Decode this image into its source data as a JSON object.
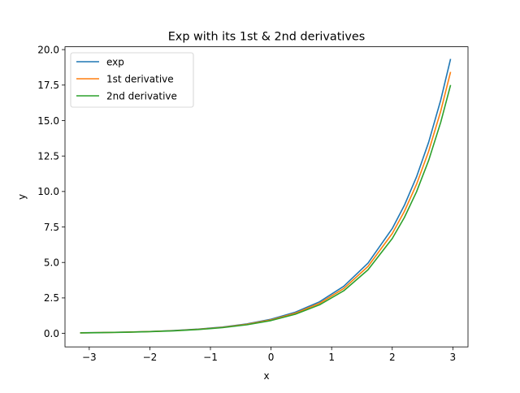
{
  "chart_data": {
    "type": "line",
    "title": "Exp with its 1st & 2nd derivatives",
    "xlabel": "x",
    "ylabel": "y",
    "xlim": [
      -3.4,
      3.25
    ],
    "ylim": [
      -0.95,
      20.2
    ],
    "xticks": [
      -3,
      -2,
      -1,
      0,
      1,
      2,
      3
    ],
    "xtick_labels": [
      "−3",
      "−2",
      "−1",
      "0",
      "1",
      "2",
      "3"
    ],
    "yticks": [
      0.0,
      2.5,
      5.0,
      7.5,
      10.0,
      12.5,
      15.0,
      17.5,
      20.0
    ],
    "ytick_labels": [
      "0.0",
      "2.5",
      "5.0",
      "7.5",
      "10.0",
      "12.5",
      "15.0",
      "17.5",
      "20.0"
    ],
    "grid": false,
    "legend_position": "top-left",
    "x": [
      -3.14,
      -2.8,
      -2.4,
      -2.0,
      -1.6,
      -1.2,
      -0.8,
      -0.4,
      0.0,
      0.4,
      0.8,
      1.2,
      1.6,
      2.0,
      2.2,
      2.4,
      2.6,
      2.8,
      2.96
    ],
    "series": [
      {
        "name": "exp",
        "color": "#1f77b4",
        "values": [
          0.043,
          0.061,
          0.091,
          0.135,
          0.202,
          0.301,
          0.449,
          0.67,
          1.0,
          1.492,
          2.226,
          3.32,
          4.953,
          7.389,
          9.025,
          11.023,
          13.464,
          16.445,
          19.298
        ]
      },
      {
        "name": "1st derivative",
        "color": "#ff7f0e",
        "values": [
          0.041,
          0.058,
          0.087,
          0.128,
          0.192,
          0.287,
          0.428,
          0.638,
          0.952,
          1.421,
          2.12,
          3.162,
          4.718,
          7.038,
          8.596,
          10.5,
          12.824,
          15.664,
          18.382
        ]
      },
      {
        "name": "2nd derivative",
        "color": "#2ca02c",
        "values": [
          0.039,
          0.055,
          0.082,
          0.122,
          0.182,
          0.272,
          0.406,
          0.606,
          0.905,
          1.35,
          2.014,
          3.004,
          4.482,
          6.686,
          8.166,
          9.974,
          12.182,
          14.88,
          17.461
        ]
      }
    ]
  }
}
